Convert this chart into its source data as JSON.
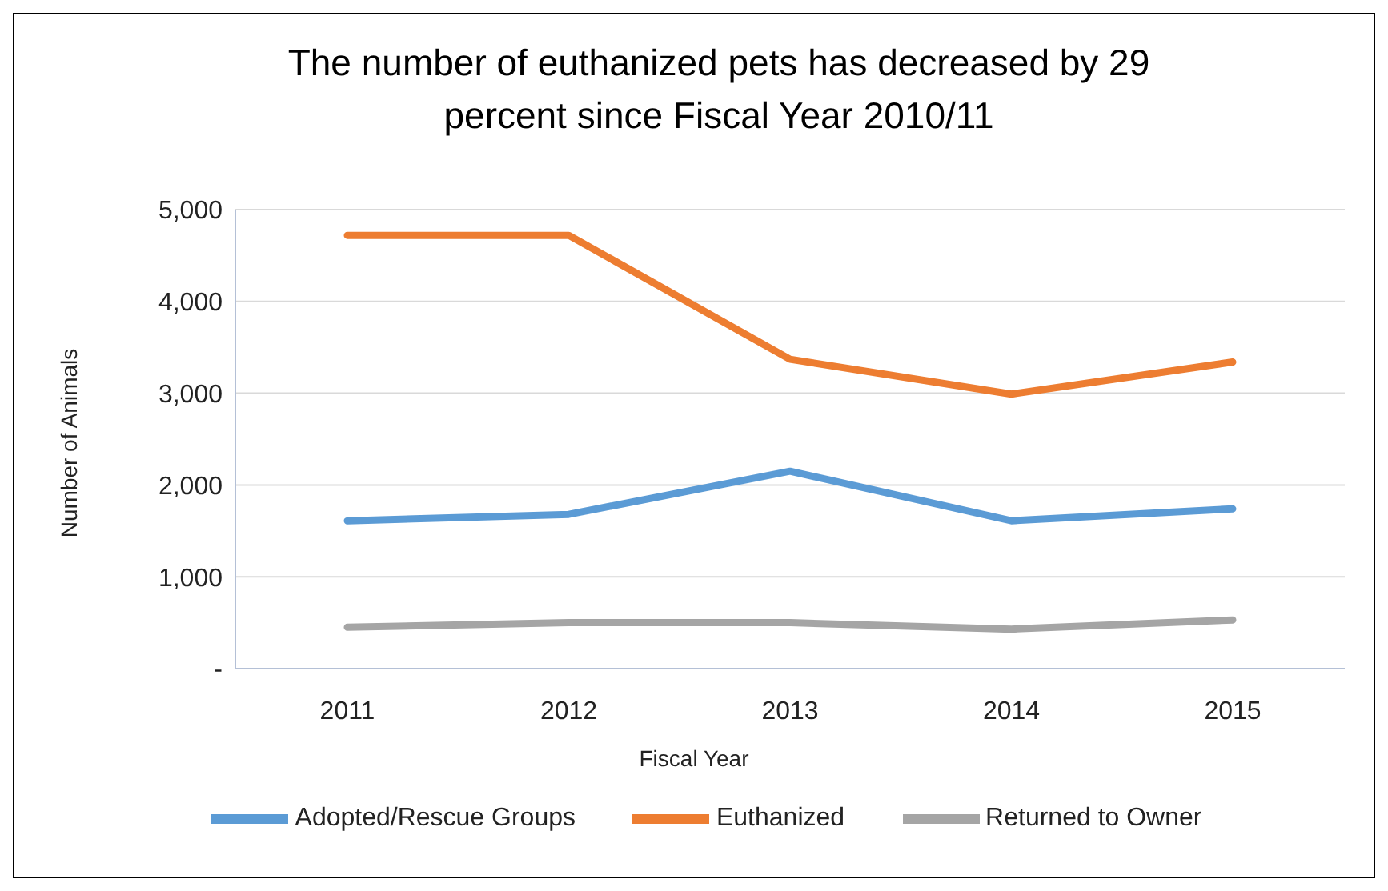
{
  "chart_data": {
    "type": "line",
    "title": "The number of euthanized pets has decreased by 29 percent since Fiscal Year 2010/11",
    "xlabel": "Fiscal Year",
    "ylabel": "Number of Animals",
    "categories": [
      "2011",
      "2012",
      "2013",
      "2014",
      "2015"
    ],
    "series": [
      {
        "name": "Adopted/Rescue Groups",
        "color": "#5b9bd5",
        "values": [
          1610,
          1680,
          2150,
          1610,
          1740
        ]
      },
      {
        "name": "Euthanized",
        "color": "#ed7d31",
        "values": [
          4720,
          4720,
          3370,
          2990,
          3340
        ]
      },
      {
        "name": "Returned to Owner",
        "color": "#a5a5a5",
        "values": [
          450,
          500,
          500,
          430,
          530
        ]
      }
    ],
    "ylim": [
      0,
      5000
    ],
    "yticks": [
      {
        "value": 0,
        "label": "-"
      },
      {
        "value": 1000,
        "label": "1,000"
      },
      {
        "value": 2000,
        "label": "2,000"
      },
      {
        "value": 3000,
        "label": "3,000"
      },
      {
        "value": 4000,
        "label": "4,000"
      },
      {
        "value": 5000,
        "label": "5,000"
      }
    ],
    "grid": "y",
    "legend": "bottom",
    "marker": "none",
    "line_style": "solid"
  }
}
